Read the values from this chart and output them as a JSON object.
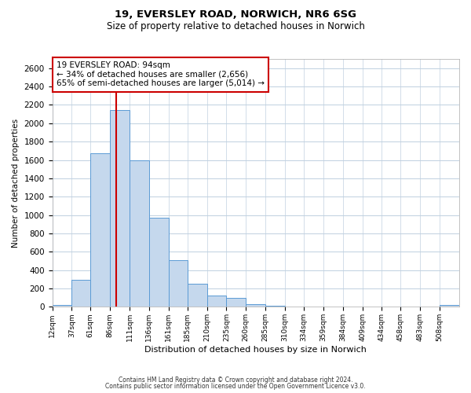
{
  "title1": "19, EVERSLEY ROAD, NORWICH, NR6 6SG",
  "title2": "Size of property relative to detached houses in Norwich",
  "xlabel": "Distribution of detached houses by size in Norwich",
  "ylabel": "Number of detached properties",
  "bin_labels": [
    "12sqm",
    "37sqm",
    "61sqm",
    "86sqm",
    "111sqm",
    "136sqm",
    "161sqm",
    "185sqm",
    "210sqm",
    "235sqm",
    "260sqm",
    "285sqm",
    "310sqm",
    "334sqm",
    "359sqm",
    "384sqm",
    "409sqm",
    "434sqm",
    "458sqm",
    "483sqm",
    "508sqm"
  ],
  "bar_heights": [
    20,
    295,
    1670,
    2140,
    1600,
    970,
    510,
    255,
    120,
    95,
    30,
    15,
    5,
    5,
    5,
    5,
    5,
    5,
    5,
    5,
    20
  ],
  "bar_color": "#c5d8ed",
  "bar_edge_color": "#5b9bd5",
  "property_line_x": 94,
  "property_line_color": "#cc0000",
  "annotation_line1": "19 EVERSLEY ROAD: 94sqm",
  "annotation_line2": "← 34% of detached houses are smaller (2,656)",
  "annotation_line3": "65% of semi-detached houses are larger (5,014) →",
  "annotation_box_color": "#ffffff",
  "annotation_box_edge_color": "#cc0000",
  "footer_text1": "Contains HM Land Registry data © Crown copyright and database right 2024.",
  "footer_text2": "Contains public sector information licensed under the Open Government Licence v3.0.",
  "ylim": [
    0,
    2700
  ],
  "yticks": [
    0,
    200,
    400,
    600,
    800,
    1000,
    1200,
    1400,
    1600,
    1800,
    2000,
    2200,
    2400,
    2600
  ],
  "background_color": "#ffffff",
  "grid_color": "#c0d0e0",
  "bin_edges": [
    12,
    37,
    61,
    86,
    111,
    136,
    161,
    185,
    210,
    235,
    260,
    285,
    310,
    334,
    359,
    384,
    409,
    434,
    458,
    483,
    508,
    533
  ]
}
